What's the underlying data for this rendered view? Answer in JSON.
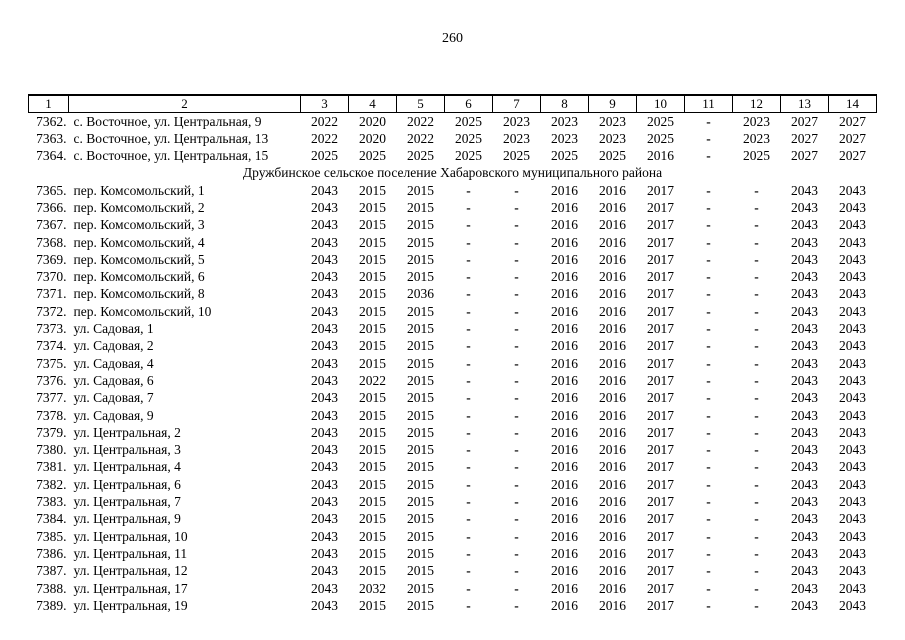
{
  "page": {
    "number": "260"
  },
  "table": {
    "header_labels": [
      "1",
      "2",
      "3",
      "4",
      "5",
      "6",
      "7",
      "8",
      "9",
      "10",
      "11",
      "12",
      "13",
      "14"
    ],
    "section_header": "Дружбинское сельское поселение Хабаровского муниципального района",
    "rows": [
      {
        "num": "7362.",
        "address": "с. Восточное, ул. Центральная, 9",
        "values": [
          "2022",
          "2020",
          "2022",
          "2025",
          "2023",
          "2023",
          "2023",
          "2025",
          "-",
          "2023",
          "2027",
          "2027"
        ]
      },
      {
        "num": "7363.",
        "address": "с. Восточное, ул. Центральная, 13",
        "values": [
          "2022",
          "2020",
          "2022",
          "2025",
          "2023",
          "2023",
          "2023",
          "2025",
          "-",
          "2023",
          "2027",
          "2027"
        ]
      },
      {
        "num": "7364.",
        "address": "с. Восточное, ул. Центральная, 15",
        "values": [
          "2025",
          "2025",
          "2025",
          "2025",
          "2025",
          "2025",
          "2025",
          "2016",
          "-",
          "2025",
          "2027",
          "2027"
        ]
      },
      {
        "section": "Дружбинское сельское поселение Хабаровского муниципального района"
      },
      {
        "num": "7365.",
        "address": "пер. Комсомольский, 1",
        "values": [
          "2043",
          "2015",
          "2015",
          "-",
          "-",
          "2016",
          "2016",
          "2017",
          "-",
          "-",
          "2043",
          "2043"
        ]
      },
      {
        "num": "7366.",
        "address": "пер. Комсомольский, 2",
        "values": [
          "2043",
          "2015",
          "2015",
          "-",
          "-",
          "2016",
          "2016",
          "2017",
          "-",
          "-",
          "2043",
          "2043"
        ]
      },
      {
        "num": "7367.",
        "address": "пер. Комсомольский, 3",
        "values": [
          "2043",
          "2015",
          "2015",
          "-",
          "-",
          "2016",
          "2016",
          "2017",
          "-",
          "-",
          "2043",
          "2043"
        ]
      },
      {
        "num": "7368.",
        "address": "пер. Комсомольский, 4",
        "values": [
          "2043",
          "2015",
          "2015",
          "-",
          "-",
          "2016",
          "2016",
          "2017",
          "-",
          "-",
          "2043",
          "2043"
        ]
      },
      {
        "num": "7369.",
        "address": "пер. Комсомольский, 5",
        "values": [
          "2043",
          "2015",
          "2015",
          "-",
          "-",
          "2016",
          "2016",
          "2017",
          "-",
          "-",
          "2043",
          "2043"
        ]
      },
      {
        "num": "7370.",
        "address": "пер. Комсомольский, 6",
        "values": [
          "2043",
          "2015",
          "2015",
          "-",
          "-",
          "2016",
          "2016",
          "2017",
          "-",
          "-",
          "2043",
          "2043"
        ]
      },
      {
        "num": "7371.",
        "address": "пер. Комсомольский, 8",
        "values": [
          "2043",
          "2015",
          "2036",
          "-",
          "-",
          "2016",
          "2016",
          "2017",
          "-",
          "-",
          "2043",
          "2043"
        ]
      },
      {
        "num": "7372.",
        "address": "пер. Комсомольский, 10",
        "values": [
          "2043",
          "2015",
          "2015",
          "-",
          "-",
          "2016",
          "2016",
          "2017",
          "-",
          "-",
          "2043",
          "2043"
        ]
      },
      {
        "num": "7373.",
        "address": "ул. Садовая, 1",
        "values": [
          "2043",
          "2015",
          "2015",
          "-",
          "-",
          "2016",
          "2016",
          "2017",
          "-",
          "-",
          "2043",
          "2043"
        ]
      },
      {
        "num": "7374.",
        "address": "ул. Садовая, 2",
        "values": [
          "2043",
          "2015",
          "2015",
          "-",
          "-",
          "2016",
          "2016",
          "2017",
          "-",
          "-",
          "2043",
          "2043"
        ]
      },
      {
        "num": "7375.",
        "address": "ул. Садовая, 4",
        "values": [
          "2043",
          "2015",
          "2015",
          "-",
          "-",
          "2016",
          "2016",
          "2017",
          "-",
          "-",
          "2043",
          "2043"
        ]
      },
      {
        "num": "7376.",
        "address": "ул. Садовая, 6",
        "values": [
          "2043",
          "2022",
          "2015",
          "-",
          "-",
          "2016",
          "2016",
          "2017",
          "-",
          "-",
          "2043",
          "2043"
        ]
      },
      {
        "num": "7377.",
        "address": "ул. Садовая, 7",
        "values": [
          "2043",
          "2015",
          "2015",
          "-",
          "-",
          "2016",
          "2016",
          "2017",
          "-",
          "-",
          "2043",
          "2043"
        ]
      },
      {
        "num": "7378.",
        "address": "ул. Садовая, 9",
        "values": [
          "2043",
          "2015",
          "2015",
          "-",
          "-",
          "2016",
          "2016",
          "2017",
          "-",
          "-",
          "2043",
          "2043"
        ]
      },
      {
        "num": "7379.",
        "address": "ул. Центральная, 2",
        "values": [
          "2043",
          "2015",
          "2015",
          "-",
          "-",
          "2016",
          "2016",
          "2017",
          "-",
          "-",
          "2043",
          "2043"
        ]
      },
      {
        "num": "7380.",
        "address": "ул. Центральная, 3",
        "values": [
          "2043",
          "2015",
          "2015",
          "-",
          "-",
          "2016",
          "2016",
          "2017",
          "-",
          "-",
          "2043",
          "2043"
        ]
      },
      {
        "num": "7381.",
        "address": "ул. Центральная, 4",
        "values": [
          "2043",
          "2015",
          "2015",
          "-",
          "-",
          "2016",
          "2016",
          "2017",
          "-",
          "-",
          "2043",
          "2043"
        ]
      },
      {
        "num": "7382.",
        "address": "ул. Центральная, 6",
        "values": [
          "2043",
          "2015",
          "2015",
          "-",
          "-",
          "2016",
          "2016",
          "2017",
          "-",
          "-",
          "2043",
          "2043"
        ]
      },
      {
        "num": "7383.",
        "address": "ул. Центральная, 7",
        "values": [
          "2043",
          "2015",
          "2015",
          "-",
          "-",
          "2016",
          "2016",
          "2017",
          "-",
          "-",
          "2043",
          "2043"
        ]
      },
      {
        "num": "7384.",
        "address": "ул. Центральная, 9",
        "values": [
          "2043",
          "2015",
          "2015",
          "-",
          "-",
          "2016",
          "2016",
          "2017",
          "-",
          "-",
          "2043",
          "2043"
        ]
      },
      {
        "num": "7385.",
        "address": "ул. Центральная, 10",
        "values": [
          "2043",
          "2015",
          "2015",
          "-",
          "-",
          "2016",
          "2016",
          "2017",
          "-",
          "-",
          "2043",
          "2043"
        ]
      },
      {
        "num": "7386.",
        "address": "ул. Центральная, 11",
        "values": [
          "2043",
          "2015",
          "2015",
          "-",
          "-",
          "2016",
          "2016",
          "2017",
          "-",
          "-",
          "2043",
          "2043"
        ]
      },
      {
        "num": "7387.",
        "address": "ул. Центральная, 12",
        "values": [
          "2043",
          "2015",
          "2015",
          "-",
          "-",
          "2016",
          "2016",
          "2017",
          "-",
          "-",
          "2043",
          "2043"
        ]
      },
      {
        "num": "7388.",
        "address": "ул. Центральная, 17",
        "values": [
          "2043",
          "2032",
          "2015",
          "-",
          "-",
          "2016",
          "2016",
          "2017",
          "-",
          "-",
          "2043",
          "2043"
        ]
      },
      {
        "num": "7389.",
        "address": "ул. Центральная, 19",
        "values": [
          "2043",
          "2015",
          "2015",
          "-",
          "-",
          "2016",
          "2016",
          "2017",
          "-",
          "-",
          "2043",
          "2043"
        ]
      }
    ]
  }
}
